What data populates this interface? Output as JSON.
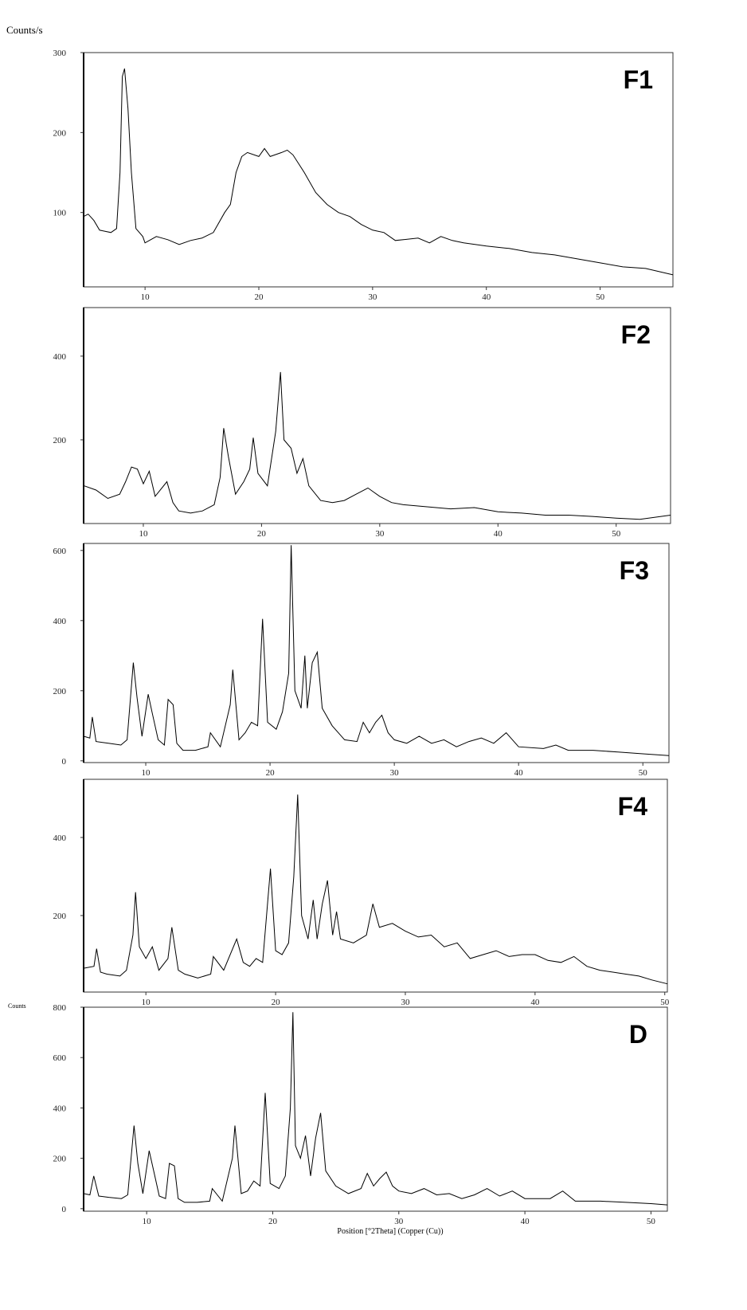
{
  "y_label": "Counts/s",
  "x_label": "Position [°2Theta] (Copper (Cu))",
  "chart_data": [
    {
      "type": "line",
      "title": "F1",
      "color": "#000000",
      "x": [
        4.6,
        5,
        5.5,
        6,
        7,
        7.5,
        7.8,
        8,
        8.2,
        8.5,
        8.8,
        9.2,
        9.8,
        10,
        11,
        11.5,
        12,
        13,
        14,
        15,
        16,
        17,
        17.5,
        18,
        18.5,
        19,
        20,
        20.5,
        21,
        22,
        22.5,
        23,
        24,
        25,
        26,
        27,
        28,
        29,
        30,
        31,
        32,
        34,
        35,
        36,
        37,
        38,
        40,
        42,
        44,
        46,
        48,
        50,
        52,
        54,
        56.4
      ],
      "values": [
        95,
        98,
        90,
        78,
        75,
        80,
        150,
        270,
        280,
        230,
        150,
        80,
        70,
        62,
        70,
        68,
        66,
        60,
        65,
        68,
        75,
        100,
        110,
        150,
        170,
        175,
        170,
        180,
        170,
        175,
        178,
        172,
        150,
        125,
        110,
        100,
        95,
        85,
        78,
        75,
        65,
        68,
        62,
        70,
        65,
        62,
        58,
        55,
        50,
        47,
        42,
        37,
        32,
        30,
        22
      ],
      "xlim": [
        4.6,
        56.4
      ],
      "ylim": [
        7,
        300
      ],
      "xticks": [
        10,
        20,
        30,
        40,
        50
      ],
      "yticks": [
        100,
        200,
        300
      ]
    },
    {
      "type": "line",
      "title": "F2",
      "color": "#000000",
      "x": [
        5,
        6,
        7,
        8,
        8.5,
        9,
        9.5,
        10,
        10.5,
        11,
        12,
        12.5,
        13,
        14,
        15,
        16,
        16.5,
        16.8,
        17.2,
        17.8,
        18.5,
        19,
        19.3,
        19.7,
        20.5,
        21.2,
        21.6,
        21.9,
        22.5,
        23,
        23.5,
        24,
        25,
        26,
        27,
        28,
        29,
        30,
        31,
        32,
        34,
        36,
        38,
        40,
        42,
        44,
        46,
        48,
        50,
        52,
        54.6
      ],
      "values": [
        90,
        80,
        60,
        70,
        100,
        135,
        130,
        95,
        125,
        65,
        100,
        50,
        30,
        25,
        30,
        45,
        110,
        228,
        160,
        70,
        100,
        130,
        205,
        120,
        90,
        220,
        362,
        200,
        180,
        120,
        155,
        90,
        55,
        50,
        55,
        70,
        85,
        65,
        50,
        45,
        40,
        35,
        38,
        28,
        25,
        20,
        20,
        17,
        13,
        10,
        20
      ],
      "xlim": [
        4.95,
        54.6
      ],
      "ylim": [
        0,
        516
      ],
      "xticks": [
        10,
        20,
        30,
        40,
        50
      ],
      "yticks": [
        200,
        400
      ]
    },
    {
      "type": "line",
      "title": "F3",
      "color": "#000000",
      "x": [
        5,
        5.5,
        5.7,
        6,
        7,
        8,
        8.5,
        9,
        9.3,
        9.7,
        10.2,
        10.5,
        11,
        11.5,
        11.8,
        12.2,
        12.5,
        13,
        14,
        15,
        15.2,
        16,
        16.8,
        17,
        17.5,
        18,
        18.5,
        19,
        19.4,
        19.8,
        20.5,
        21,
        21.5,
        21.7,
        22,
        22.5,
        22.8,
        23,
        23.4,
        23.8,
        24.2,
        25,
        26,
        27,
        27.5,
        28,
        28.5,
        29,
        29.5,
        30,
        31,
        32,
        33,
        34,
        35,
        36,
        37,
        38,
        39,
        40,
        42,
        43,
        44,
        46,
        48,
        50,
        52.1
      ],
      "values": [
        70,
        65,
        125,
        55,
        50,
        45,
        60,
        280,
        180,
        70,
        190,
        140,
        60,
        45,
        175,
        160,
        50,
        30,
        30,
        40,
        80,
        40,
        160,
        260,
        60,
        80,
        110,
        100,
        405,
        110,
        90,
        140,
        250,
        615,
        200,
        150,
        300,
        150,
        280,
        310,
        150,
        100,
        60,
        55,
        110,
        80,
        110,
        130,
        80,
        60,
        50,
        70,
        50,
        60,
        40,
        55,
        65,
        50,
        80,
        40,
        35,
        45,
        30,
        30,
        25,
        20,
        15
      ],
      "xlim": [
        5.0,
        52.1
      ],
      "ylim": [
        -5,
        620
      ],
      "xticks": [
        10,
        20,
        30,
        40,
        50
      ],
      "yticks": [
        0,
        200,
        400,
        600
      ]
    },
    {
      "type": "line",
      "title": "F4",
      "color": "#000000",
      "x": [
        5.2,
        6,
        6.2,
        6.5,
        7,
        8,
        8.5,
        9,
        9.2,
        9.5,
        10,
        10.5,
        11,
        11.7,
        12,
        12.5,
        13,
        14,
        15,
        15.2,
        16,
        17,
        17.5,
        18,
        18.5,
        19,
        19.6,
        20,
        20.5,
        21,
        21.4,
        21.7,
        22,
        22.5,
        22.9,
        23.2,
        23.6,
        24,
        24.4,
        24.7,
        25,
        26,
        27,
        27.5,
        28,
        29,
        30,
        31,
        32,
        33,
        34,
        35,
        36,
        37,
        38,
        39,
        40,
        41,
        42,
        43,
        44,
        45,
        46,
        47,
        48,
        49,
        50.2
      ],
      "values": [
        65,
        70,
        115,
        55,
        50,
        45,
        60,
        150,
        260,
        120,
        90,
        120,
        60,
        90,
        170,
        60,
        50,
        40,
        50,
        95,
        60,
        140,
        80,
        70,
        90,
        80,
        320,
        110,
        100,
        130,
        300,
        510,
        200,
        140,
        240,
        140,
        230,
        290,
        150,
        210,
        140,
        130,
        150,
        230,
        170,
        180,
        160,
        145,
        150,
        120,
        130,
        90,
        100,
        110,
        95,
        100,
        100,
        85,
        80,
        95,
        70,
        60,
        55,
        50,
        45,
        35,
        25
      ],
      "xlim": [
        5.2,
        50.2
      ],
      "ylim": [
        4,
        549
      ],
      "xticks": [
        10,
        20,
        30,
        40,
        50
      ],
      "yticks": [
        200,
        400
      ]
    },
    {
      "type": "line",
      "title": "D",
      "y_label": "Counts",
      "color": "#000000",
      "x": [
        5,
        5.5,
        5.8,
        6.2,
        7,
        8,
        8.5,
        9,
        9.3,
        9.7,
        10.2,
        10.6,
        11,
        11.5,
        11.8,
        12.2,
        12.5,
        13,
        14,
        15,
        15.2,
        16,
        16.8,
        17,
        17.5,
        18,
        18.5,
        19,
        19.4,
        19.8,
        20.5,
        21,
        21.4,
        21.6,
        21.8,
        22.2,
        22.6,
        23,
        23.4,
        23.8,
        24.2,
        25,
        26,
        27,
        27.5,
        28,
        28.5,
        29,
        29.5,
        30,
        31,
        32,
        33,
        34,
        35,
        36,
        37,
        38,
        39,
        40,
        42,
        43,
        44,
        46,
        48,
        50,
        51.3
      ],
      "values": [
        60,
        55,
        130,
        50,
        45,
        40,
        55,
        330,
        180,
        60,
        230,
        140,
        50,
        40,
        180,
        170,
        40,
        25,
        25,
        30,
        80,
        30,
        200,
        330,
        60,
        70,
        110,
        90,
        460,
        100,
        80,
        130,
        400,
        780,
        250,
        200,
        290,
        130,
        280,
        380,
        150,
        90,
        60,
        80,
        140,
        90,
        120,
        145,
        90,
        70,
        60,
        80,
        55,
        60,
        40,
        55,
        80,
        50,
        70,
        40,
        40,
        70,
        30,
        30,
        25,
        20,
        15
      ],
      "xlim": [
        5.0,
        51.3
      ],
      "ylim": [
        -10,
        800
      ],
      "xticks": [
        10,
        20,
        30,
        40,
        50
      ],
      "yticks": [
        0,
        200,
        400,
        600,
        800
      ]
    }
  ]
}
